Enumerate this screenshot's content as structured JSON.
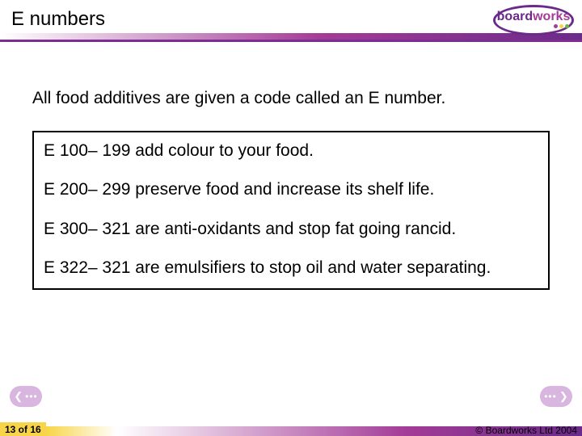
{
  "colors": {
    "brand_purple": "#6b2a8a",
    "brand_magenta": "#a33b97",
    "brand_yellow": "#f8d548",
    "header_underline": "#7a2e90",
    "pill_bg": "#d9b6e0",
    "logo_board": "#6b2a8a",
    "logo_works": "#a33b97",
    "dot_purple": "#a33b97",
    "dot_yellow": "#f8d548",
    "dot_green": "#6fb24d",
    "footer_text": "#000000"
  },
  "header": {
    "title": "E numbers",
    "logo_board": "board",
    "logo_works": "works"
  },
  "content": {
    "intro": "All food additives are given a code called an E number.",
    "rows": [
      "E 100– 199 add colour to your food.",
      "E 200– 299 preserve food and increase its shelf life.",
      "E 300– 321 are anti-oxidants and stop fat going rancid.",
      "E 322– 321 are emulsifiers to stop oil and water separating."
    ]
  },
  "footer": {
    "page": "13 of 16",
    "copyright": "© Boardworks Ltd 2004"
  }
}
